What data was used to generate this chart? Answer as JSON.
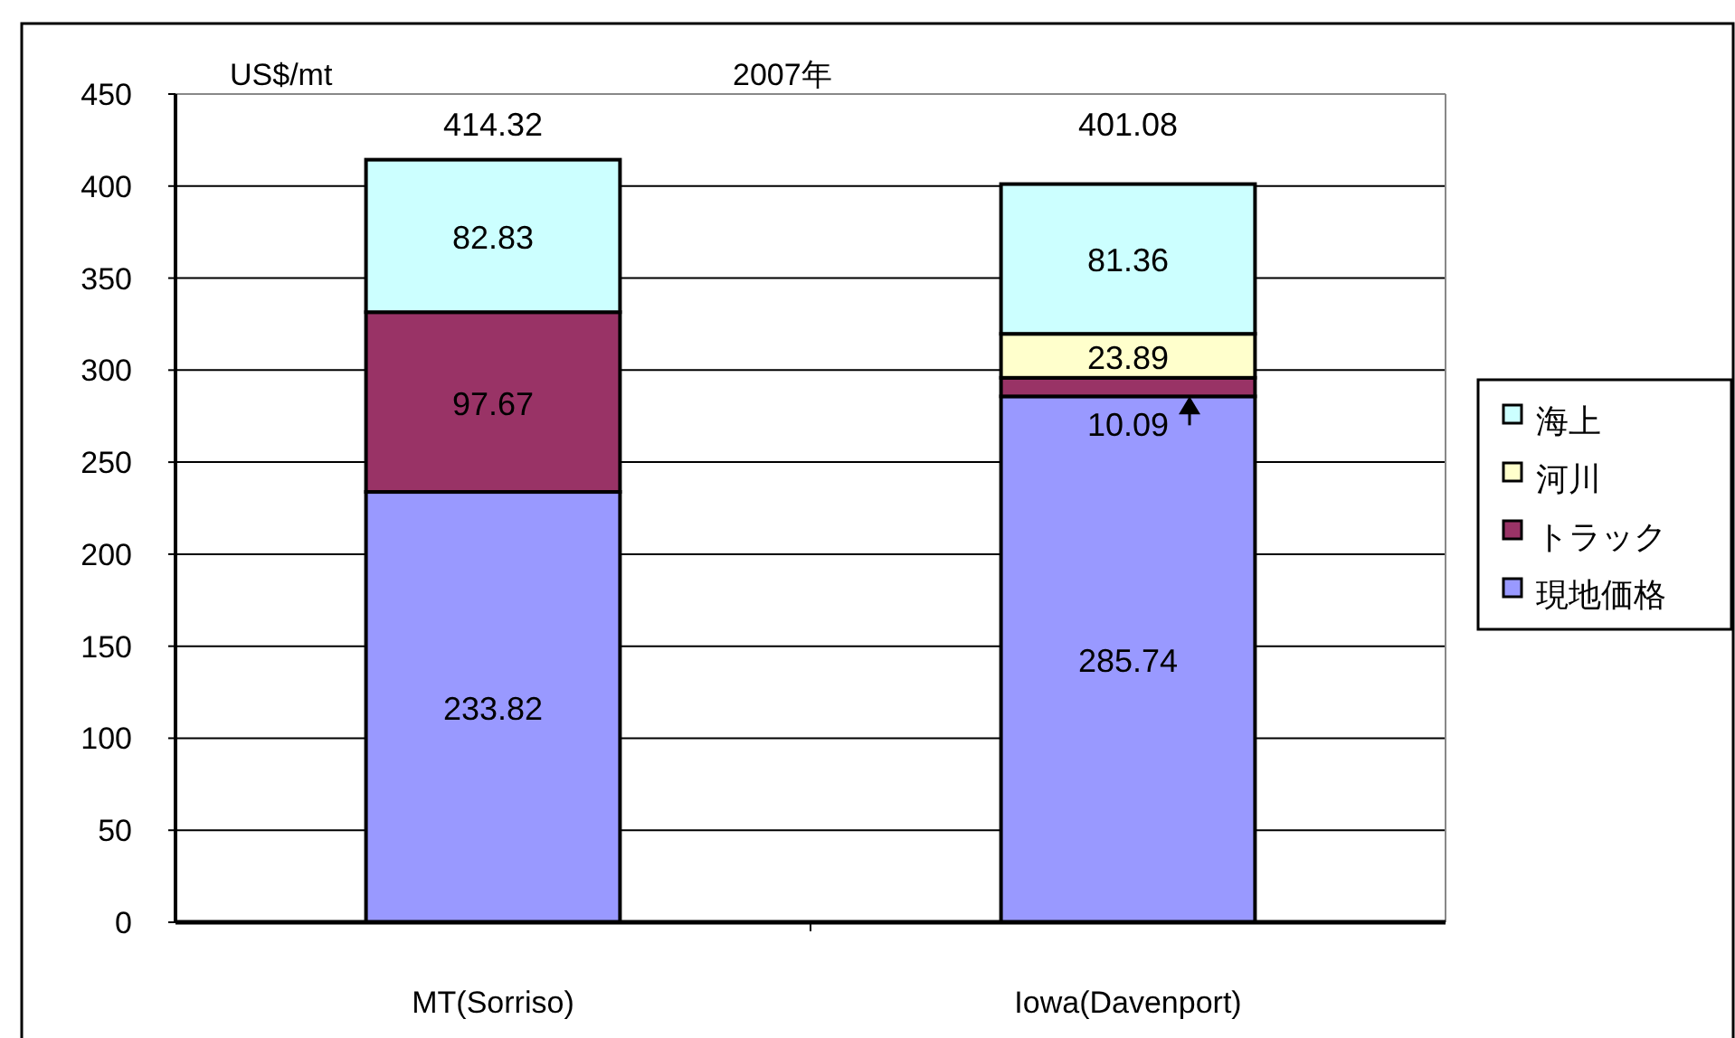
{
  "chart_data": {
    "type": "bar",
    "stacked": true,
    "title": "2007年",
    "ylabel": "US$/mt",
    "categories": [
      "MT(Sorriso)",
      "Iowa(Davenport)"
    ],
    "series": [
      {
        "name": "現地価格",
        "color": "#9999ff",
        "values": [
          233.82,
          285.74
        ]
      },
      {
        "name": "トラック",
        "color": "#993366",
        "values": [
          97.67,
          10.09
        ]
      },
      {
        "name": "河川",
        "color": "#ffffcc",
        "values": [
          null,
          23.89
        ]
      },
      {
        "name": "海上",
        "color": "#ccffff",
        "values": [
          82.83,
          81.36
        ]
      }
    ],
    "totals": [
      "414.32",
      "401.08"
    ],
    "data_labels": true,
    "ylim": [
      0,
      450
    ],
    "yticks": [
      0,
      50,
      100,
      150,
      200,
      250,
      300,
      350,
      400,
      450
    ],
    "grid": "y",
    "legend": "right"
  }
}
